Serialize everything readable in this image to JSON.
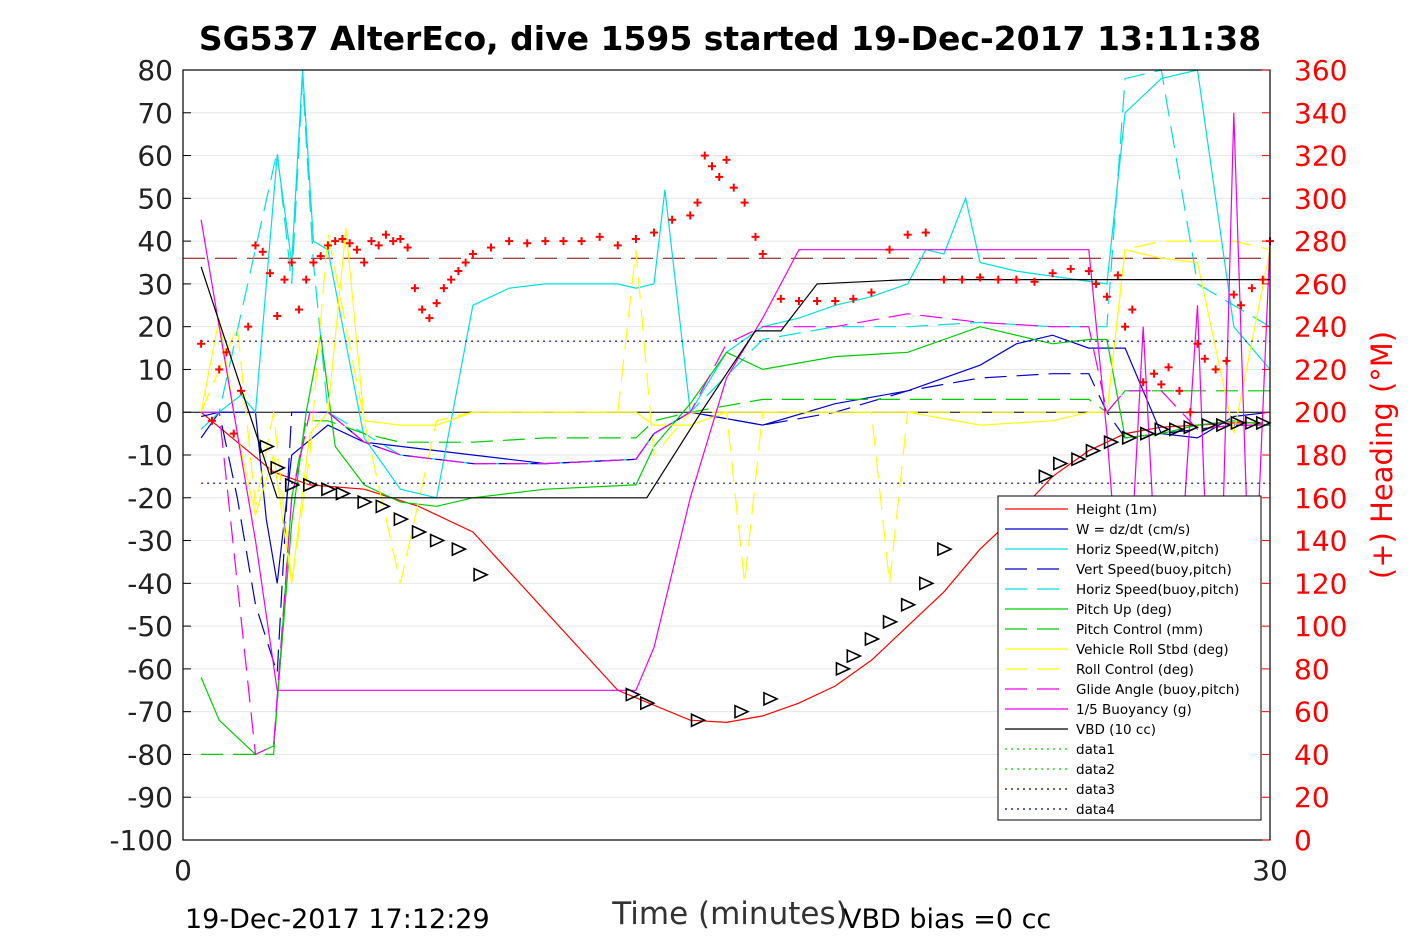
{
  "chart_data": {
    "type": "line",
    "title": "SG537 AlterEco, dive 1595 started 19-Dec-2017 13:11:38",
    "xlabel": "Time (minutes)",
    "ylabel_right": "(+) Heading (°M)",
    "xlim": [
      0,
      30
    ],
    "ylim": [
      -100,
      80
    ],
    "ylim_right": [
      0,
      360
    ],
    "x_ticks": [
      "0",
      "30"
    ],
    "y_ticks": [
      "80",
      "70",
      "60",
      "50",
      "40",
      "30",
      "20",
      "10",
      "0",
      "-10",
      "-20",
      "-30",
      "-40",
      "-50",
      "-60",
      "-70",
      "-80",
      "-90",
      "-100"
    ],
    "y_ticks_right": [
      "360",
      "340",
      "320",
      "300",
      "280",
      "260",
      "240",
      "220",
      "200",
      "180",
      "160",
      "140",
      "120",
      "100",
      "80",
      "60",
      "40",
      "20",
      "0"
    ],
    "grid": true,
    "legend_position": "lower-right",
    "footer_left": "19-Dec-2017 17:12:29",
    "footer_right": "VBD bias =0 cc",
    "colors": {
      "right_axis": "#ff0000",
      "heading_marker": "#ff0000"
    },
    "series": [
      {
        "name": "Height (1m)",
        "color": "#ff0000",
        "dash": "solid",
        "x": [
          0.5,
          2.5,
          3.5,
          5,
          6.5,
          8,
          12,
          14,
          15,
          16,
          17,
          18,
          19,
          20,
          21,
          22,
          23,
          24,
          25,
          26,
          27,
          28,
          29,
          29.8
        ],
        "y": [
          0,
          -14,
          -17,
          -18,
          -22,
          -28,
          -65,
          -72,
          -72.5,
          -71,
          -68,
          -64,
          -58,
          -50,
          -42,
          -32,
          -24,
          -15,
          -9,
          -5,
          -3.5,
          -3,
          -2.5,
          -2.5
        ]
      },
      {
        "name": "W = dz/dt (cm/s)",
        "color": "#0000cc",
        "dash": "solid",
        "x": [
          0.5,
          1,
          2,
          2.3,
          2.6,
          3,
          4,
          5,
          6,
          8,
          10,
          12.5,
          13,
          14,
          16,
          18,
          20,
          22,
          23,
          24,
          25,
          26,
          27,
          28,
          29,
          30
        ],
        "y": [
          -6,
          0,
          0,
          -25,
          -40,
          -10,
          -3,
          -7,
          -8,
          -10,
          -12,
          -11,
          -5,
          0,
          -3,
          2,
          5,
          11,
          16,
          18,
          15,
          15,
          -5,
          -6,
          -1,
          0
        ]
      },
      {
        "name": "Horiz Speed(W,pitch)",
        "color": "#00e0e0",
        "dash": "solid",
        "x": [
          0.5,
          1,
          1.6,
          2,
          2.6,
          3,
          3.3,
          3.6,
          4,
          5,
          6,
          7,
          8,
          9,
          10,
          11,
          12,
          12.5,
          13,
          13.3,
          14,
          15,
          16,
          17,
          18,
          19,
          20,
          20.5,
          21,
          21.6,
          22,
          23,
          25.5,
          26,
          27,
          28,
          29,
          30
        ],
        "y": [
          -4,
          0,
          4,
          0,
          60,
          35,
          80,
          40,
          38,
          -6,
          -18,
          -20,
          25,
          29,
          30,
          30,
          30,
          29,
          30,
          52,
          0,
          14,
          20,
          22,
          25,
          27,
          30,
          38,
          37,
          50,
          35,
          33,
          30,
          70,
          78,
          80,
          20,
          10
        ]
      },
      {
        "name": "Vert Speed(buoy,pitch)",
        "color": "#0000cc",
        "dash": "dashed",
        "x": [
          0.5,
          1,
          1.5,
          2,
          2.6,
          3,
          3.5,
          4,
          5,
          6,
          8,
          10,
          12.5,
          13,
          14,
          16,
          18,
          20,
          22,
          24,
          25,
          25.5,
          26,
          27,
          28,
          29,
          30
        ],
        "y": [
          -1,
          0,
          -20,
          -45,
          -61,
          0,
          0,
          0,
          -7,
          -10,
          -12,
          -12,
          -11,
          -5,
          0,
          -3,
          0,
          5,
          8,
          9,
          9,
          0,
          -6,
          -5,
          -4,
          -3,
          -3
        ]
      },
      {
        "name": "Horiz Speed(buoy,pitch)",
        "color": "#00e0e0",
        "dash": "dashed",
        "x": [
          0.5,
          1,
          2.6,
          3,
          3.3,
          3.6,
          4,
          5,
          6,
          8,
          10,
          12.5,
          13,
          14,
          16,
          18,
          20,
          22,
          24,
          25.5,
          26,
          27,
          28,
          29,
          30
        ],
        "y": [
          0,
          0,
          61,
          30,
          78,
          35,
          0,
          -5,
          -10,
          -12,
          -12,
          -11,
          -5,
          0,
          17,
          20,
          20,
          21,
          20,
          20,
          78,
          80,
          30,
          25,
          20
        ]
      },
      {
        "name": "Pitch Up (deg)",
        "color": "#00cc00",
        "dash": "solid",
        "x": [
          0.5,
          1,
          1.5,
          2,
          2.5,
          3,
          3.4,
          3.8,
          4.2,
          5,
          6,
          7,
          8,
          10,
          12.5,
          13,
          14,
          15,
          16,
          18,
          20,
          22,
          24,
          25,
          25.5,
          26,
          27,
          28,
          29,
          30
        ],
        "y": [
          -62,
          -72,
          -76,
          -80,
          -78,
          -26,
          0,
          18,
          -8,
          -17,
          -21,
          -22,
          -20,
          -18,
          -17,
          -8,
          2,
          14,
          10,
          13,
          14,
          20,
          16,
          17,
          17,
          -6,
          -5,
          -3,
          -2,
          -3
        ]
      },
      {
        "name": "Pitch Control (mm)",
        "color": "#00cc00",
        "dash": "dashed",
        "x": [
          0.5,
          1,
          2,
          2.5,
          3,
          3.4,
          4,
          5,
          6,
          8,
          10,
          12.5,
          13,
          14,
          16,
          18,
          20,
          22,
          24,
          25,
          25.5,
          26,
          27,
          28,
          29,
          30
        ],
        "y": [
          -80,
          -80,
          -80,
          -80,
          -20,
          -2,
          -2,
          -5,
          -7,
          -7,
          -6,
          -6,
          -2,
          0,
          3,
          3,
          3,
          3,
          3,
          3,
          0,
          5,
          5,
          5,
          5,
          5
        ]
      },
      {
        "name": "Vehicle Roll Stbd (deg)",
        "color": "#ffff00",
        "dash": "solid",
        "x": [
          0.5,
          1,
          1.5,
          2,
          2.5,
          3,
          3.5,
          4,
          4.5,
          5,
          6,
          7,
          8,
          10,
          12,
          12.5,
          13,
          14,
          15,
          16,
          18,
          20,
          22,
          24,
          25,
          25.5,
          26,
          27,
          28,
          29,
          30
        ],
        "y": [
          0,
          22,
          -5,
          -24,
          -10,
          -40,
          -5,
          0,
          43,
          -2,
          -3,
          -3,
          0,
          0,
          0,
          0,
          -3,
          -3,
          0,
          0,
          0,
          0,
          -3,
          -2,
          0,
          0,
          38,
          36,
          35,
          -5,
          38
        ]
      },
      {
        "name": "Roll Control (deg)",
        "color": "#ffff00",
        "dash": "dashed",
        "x": [
          0.5,
          1.5,
          2,
          2.5,
          3,
          3.5,
          4,
          5,
          6,
          7,
          8,
          10,
          12,
          12.5,
          13,
          14,
          15,
          15.5,
          16,
          18,
          19,
          19.5,
          20,
          22,
          24,
          25,
          25.5,
          26,
          27,
          28,
          29,
          30
        ],
        "y": [
          0,
          20,
          -22,
          0,
          -40,
          -10,
          42,
          -2,
          -40,
          -2,
          0,
          0,
          0,
          38,
          -10,
          0,
          0,
          -40,
          0,
          0,
          0,
          -40,
          0,
          0,
          0,
          0,
          0,
          38,
          40,
          40,
          40,
          38
        ]
      },
      {
        "name": "Glide Angle (buoy,pitch)",
        "color": "#ee00ee",
        "dash": "dashed",
        "x": [
          0.5,
          1,
          1.5,
          2,
          2.5,
          3,
          3.5,
          4,
          5,
          6,
          8,
          10,
          12.5,
          13,
          14,
          15,
          16,
          18,
          20,
          22,
          24,
          25,
          25.5,
          26,
          27,
          28,
          29,
          30
        ],
        "y": [
          0,
          0,
          -40,
          -80,
          -78,
          -20,
          0,
          0,
          -7,
          -10,
          -12,
          -12,
          -11,
          -5,
          0,
          16,
          20,
          20,
          23,
          21,
          20,
          20,
          0,
          5,
          5,
          -4,
          -3,
          -3
        ]
      },
      {
        "name": "1/5 Buoyancy (g)",
        "color": "#ee00ee",
        "dash": "solid",
        "x": [
          0.5,
          1,
          2,
          2.6,
          3,
          4,
          12.5,
          13,
          14,
          15,
          16,
          17,
          17.5,
          18,
          20,
          22,
          24,
          25,
          25.5,
          26,
          26.5,
          27,
          27.5,
          28,
          28.5,
          29,
          29.5,
          30
        ],
        "y": [
          45,
          20,
          -30,
          -65,
          -65,
          -65,
          -65,
          -55,
          -20,
          8,
          22,
          38,
          38,
          38,
          38,
          38,
          38,
          38,
          -5,
          -60,
          20,
          -60,
          -40,
          25,
          -90,
          70,
          -60,
          40
        ]
      },
      {
        "name": "VBD (10 cc)",
        "color": "#000000",
        "dash": "solid",
        "x": [
          0.5,
          2.6,
          12.8,
          14.3,
          15,
          15.8,
          16.5,
          17.5,
          20,
          25,
          30
        ],
        "y": [
          34,
          -20,
          -20,
          0,
          9,
          19,
          19,
          30,
          31,
          31,
          31
        ]
      },
      {
        "name": "data1",
        "color": "#00cc00",
        "dash": "dotted",
        "x": [],
        "y": []
      },
      {
        "name": "data2",
        "color": "#00cc00",
        "dash": "dotted",
        "x": [],
        "y": []
      },
      {
        "name": "data3",
        "color": "#000099",
        "dash": "dotted",
        "x": [
          0.5,
          30
        ],
        "y": [
          16.6,
          16.6
        ]
      },
      {
        "name": "data4",
        "color": "#000099",
        "dash": "dotted",
        "x": [
          0.5,
          30
        ],
        "y": [
          -16.6,
          -16.6
        ]
      }
    ],
    "reference_lines": [
      {
        "kind": "horizontal",
        "y": 0,
        "color": "#000000",
        "dash": "solid"
      },
      {
        "kind": "horizontal",
        "y": 36,
        "color": "#8b0000",
        "dash": "dashed"
      }
    ],
    "heading_series": {
      "marker": "+",
      "x": [
        0.5,
        0.8,
        1,
        1.2,
        1.4,
        1.6,
        1.8,
        2,
        2.2,
        2.4,
        2.6,
        2.8,
        3,
        3.2,
        3.4,
        3.6,
        3.8,
        4,
        4.2,
        4.4,
        4.6,
        4.8,
        5,
        5.2,
        5.4,
        5.6,
        5.8,
        6,
        6.2,
        6.4,
        6.6,
        6.8,
        7,
        7.2,
        7.4,
        7.6,
        7.8,
        8,
        8.5,
        9,
        9.5,
        10,
        10.5,
        11,
        11.5,
        12,
        12.5,
        13,
        13.5,
        14,
        14.2,
        14.4,
        14.6,
        14.8,
        15,
        15.2,
        15.5,
        15.8,
        16,
        16.5,
        17,
        17.5,
        18,
        18.5,
        19,
        19.5,
        20,
        20.5,
        21,
        21.5,
        22,
        22.5,
        23,
        23.5,
        24,
        24.5,
        25,
        25.2,
        25.5,
        25.8,
        26,
        26.2,
        26.5,
        26.8,
        27,
        27.2,
        27.5,
        27.8,
        28,
        28.2,
        28.5,
        28.8,
        29,
        29.2,
        29.5,
        29.8,
        30
      ],
      "y": [
        232,
        196,
        220,
        228,
        190,
        210,
        240,
        278,
        275,
        265,
        245,
        262,
        270,
        248,
        262,
        270,
        273,
        278,
        280,
        281,
        279,
        276,
        270,
        280,
        278,
        283,
        280,
        281,
        277,
        258,
        248,
        244,
        251,
        258,
        262,
        266,
        270,
        274,
        277,
        280,
        279,
        280,
        280,
        280,
        282,
        278,
        281,
        284,
        290,
        292,
        298,
        320,
        315,
        310,
        318,
        305,
        298,
        282,
        274,
        253,
        252,
        252,
        252,
        253,
        256,
        276,
        283,
        284,
        262,
        262,
        263,
        262,
        262,
        261,
        265,
        267,
        266,
        260,
        254,
        264,
        240,
        248,
        214,
        218,
        213,
        221,
        210,
        200,
        232,
        225,
        220,
        224,
        255,
        250,
        258,
        262,
        280
      ]
    },
    "triangle_markers": {
      "description": "open triangles along height trace",
      "x": [
        2.3,
        2.6,
        3,
        3.5,
        4,
        4.4,
        5,
        5.5,
        6,
        6.5,
        7,
        7.6,
        8.2,
        12.4,
        12.8,
        14.2,
        15.4,
        16.2,
        18.2,
        18.5,
        19,
        19.5,
        20,
        20.5,
        21,
        23.8,
        24.2,
        24.7,
        25.1,
        25.6,
        26.1,
        26.6,
        27,
        27.4,
        27.8,
        28.3,
        28.7,
        29.1,
        29.5,
        29.8
      ],
      "y": [
        -8,
        -13,
        -17,
        -17,
        -18,
        -19,
        -21,
        -22,
        -25,
        -28,
        -30,
        -32,
        -38,
        -66,
        -68,
        -72,
        -70,
        -67,
        -60,
        -57,
        -53,
        -49,
        -45,
        -40,
        -32,
        -15,
        -12,
        -11,
        -9,
        -7,
        -6,
        -5,
        -4,
        -4,
        -3.5,
        -3,
        -3,
        -2.5,
        -2.5,
        -2.5
      ]
    }
  }
}
